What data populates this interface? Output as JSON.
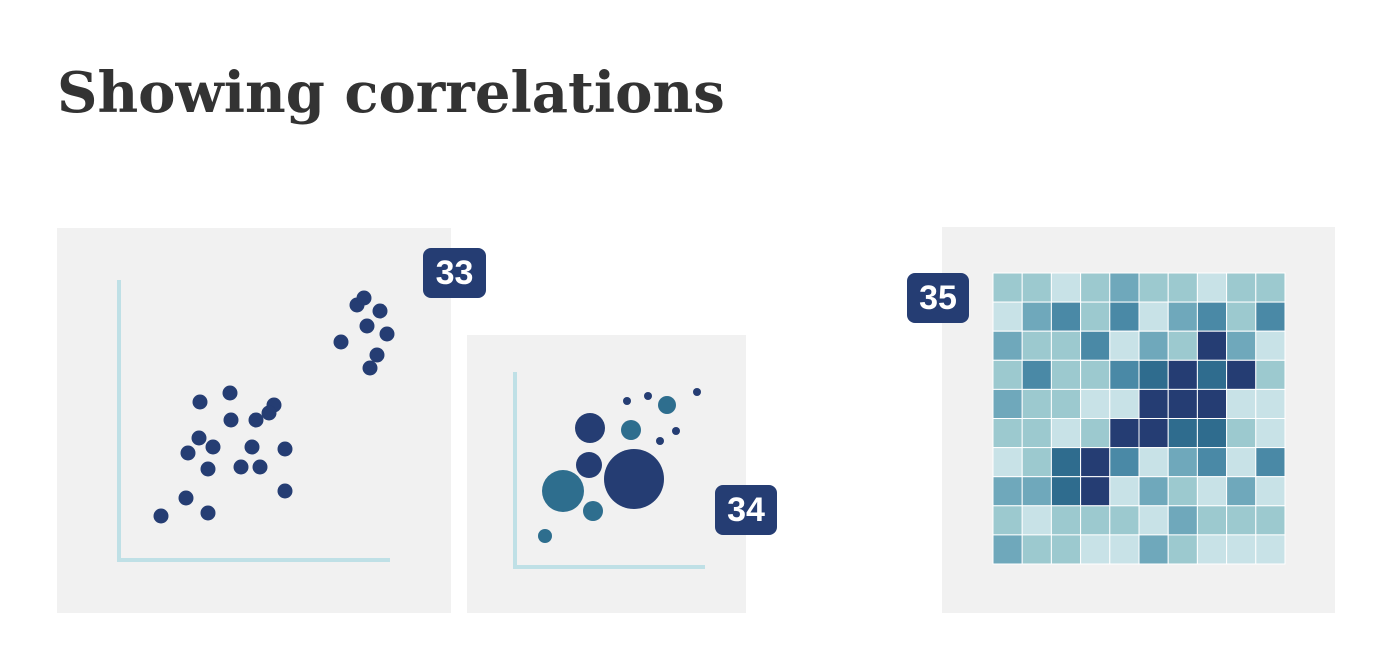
{
  "header": {
    "title": "Showing correlations"
  },
  "cards": [
    {
      "number": "33"
    },
    {
      "number": "34"
    },
    {
      "number": "35"
    }
  ]
}
